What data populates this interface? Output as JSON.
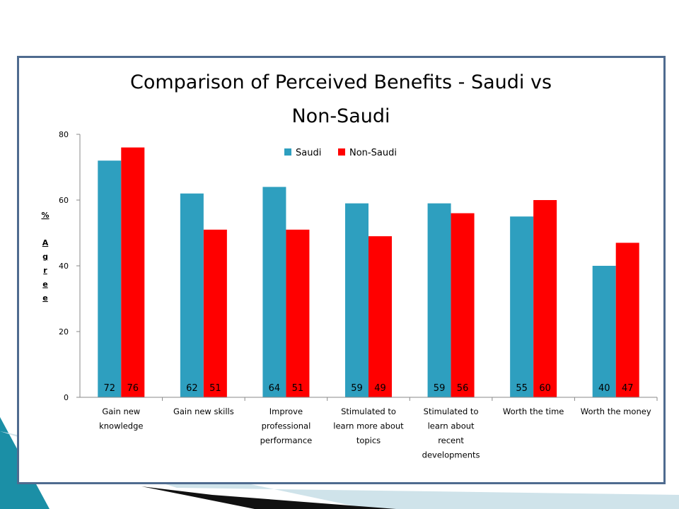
{
  "colors": {
    "saudi": "#2e9fbf",
    "non_saudi": "#ff0000",
    "frame": "#4f6b8f",
    "axis": "#8a8a8a",
    "decor_teal": "#1b8fa6",
    "decor_dark": "#111111",
    "decor_light": "#cfe3ea"
  },
  "chart_data": {
    "type": "bar",
    "title": "Comparison of Perceived Benefits - Saudi vs Non-Saudi",
    "title_lines": [
      "Comparison of Perceived Benefits - Saudi vs",
      "Non-Saudi"
    ],
    "ylabel": "% Agree",
    "ylabel_chars": [
      "%",
      "",
      "A",
      "g",
      "r",
      "e",
      "e"
    ],
    "xlabel": "",
    "ylim": [
      0,
      80
    ],
    "yticks": [
      0,
      20,
      40,
      60,
      80
    ],
    "grid": false,
    "legend_position": "top-center",
    "categories": [
      "Gain new knowledge",
      "Gain new skills",
      "Improve professional performance",
      "Stimulated to learn more about topics",
      "Stimulated to learn about recent developments",
      "Worth the time",
      "Worth the money"
    ],
    "category_lines": [
      [
        "Gain new",
        "knowledge"
      ],
      [
        "Gain new skills"
      ],
      [
        "Improve",
        "professional",
        "performance"
      ],
      [
        "Stimulated to",
        "learn more about",
        "topics"
      ],
      [
        "Stimulated to",
        "learn about",
        "recent",
        "developments"
      ],
      [
        "Worth the time"
      ],
      [
        "Worth the money"
      ]
    ],
    "series": [
      {
        "name": "Saudi",
        "values": [
          72,
          62,
          64,
          59,
          59,
          55,
          40
        ]
      },
      {
        "name": "Non-Saudi",
        "values": [
          76,
          51,
          51,
          49,
          56,
          60,
          47
        ]
      }
    ]
  }
}
